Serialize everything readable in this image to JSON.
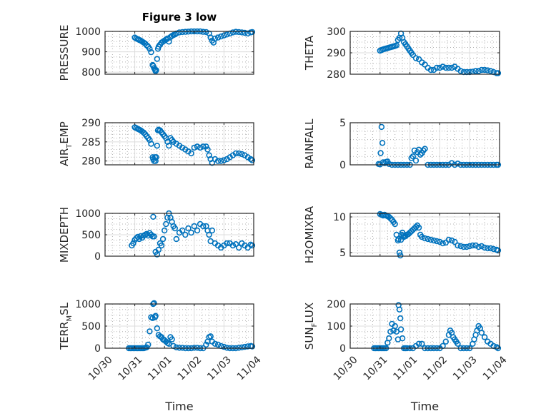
{
  "figure": {
    "title": "Figure 3 low",
    "marker_color": "#0072BD",
    "x_tick_labels": [
      "10/30",
      "10/31",
      "11/01",
      "11/02",
      "11/03",
      "11/04"
    ],
    "x_label": "Time"
  },
  "chart_data": [
    {
      "type": "scatter",
      "name": "PRESSURE",
      "ylabel": "PRESSURE",
      "ylabel_parts": [
        "PRESSURE"
      ],
      "x_unit": "days since 10/30",
      "xlim": [
        0,
        5
      ],
      "ylim": [
        790,
        1000
      ],
      "yticks": [
        800,
        900,
        1000
      ],
      "yticklabels": [
        "800",
        "900",
        "1000"
      ],
      "minor_yticks": [
        825,
        850,
        875,
        925,
        950,
        975
      ],
      "show_x_ticklabels": false,
      "x": [
        1.0,
        1.05,
        1.1,
        1.15,
        1.2,
        1.25,
        1.3,
        1.35,
        1.4,
        1.45,
        1.5,
        1.55,
        1.6,
        1.62,
        1.65,
        1.68,
        1.7,
        1.72,
        1.75,
        1.78,
        1.8,
        1.85,
        1.9,
        1.95,
        2.0,
        2.05,
        2.1,
        2.15,
        2.2,
        2.25,
        2.3,
        2.35,
        2.4,
        2.5,
        2.6,
        2.7,
        2.8,
        2.9,
        3.0,
        3.1,
        3.2,
        3.3,
        3.4,
        3.5,
        3.55,
        3.6,
        3.65,
        3.7,
        3.8,
        3.9,
        4.0,
        4.1,
        4.2,
        4.3,
        4.4,
        4.5,
        4.6,
        4.7,
        4.8,
        4.9,
        4.95
      ],
      "y": [
        970,
        965,
        962,
        958,
        955,
        950,
        945,
        940,
        932,
        925,
        915,
        898,
        835,
        830,
        820,
        812,
        805,
        810,
        865,
        915,
        925,
        935,
        945,
        950,
        955,
        960,
        965,
        950,
        972,
        978,
        982,
        985,
        990,
        995,
        997,
        998,
        999,
        1000,
        1000,
        1000,
        1000,
        998,
        997,
        990,
        970,
        955,
        945,
        965,
        970,
        975,
        980,
        985,
        990,
        995,
        998,
        997,
        995,
        993,
        990,
        995,
        997
      ]
    },
    {
      "type": "scatter",
      "name": "THETA",
      "ylabel": "THETA",
      "ylabel_parts": [
        "THETA"
      ],
      "x_unit": "days since 10/30",
      "xlim": [
        0,
        5
      ],
      "ylim": [
        280,
        300
      ],
      "yticks": [
        280,
        290,
        300
      ],
      "yticklabels": [
        "280",
        "290",
        "300"
      ],
      "minor_yticks": [
        282.5,
        285,
        287.5,
        292.5,
        295,
        297.5
      ],
      "show_x_ticklabels": false,
      "x": [
        1.0,
        1.05,
        1.1,
        1.15,
        1.2,
        1.25,
        1.3,
        1.35,
        1.4,
        1.45,
        1.5,
        1.55,
        1.6,
        1.65,
        1.7,
        1.75,
        1.8,
        1.85,
        1.9,
        1.95,
        2.0,
        2.05,
        2.1,
        2.2,
        2.3,
        2.4,
        2.5,
        2.6,
        2.7,
        2.8,
        2.9,
        3.0,
        3.1,
        3.2,
        3.3,
        3.4,
        3.5,
        3.6,
        3.7,
        3.8,
        3.9,
        4.0,
        4.1,
        4.2,
        4.3,
        4.4,
        4.5,
        4.6,
        4.7,
        4.8,
        4.9,
        4.95
      ],
      "y": [
        291,
        291.3,
        291.6,
        291.8,
        292,
        292.2,
        292.4,
        292.6,
        292.8,
        293,
        293.2,
        293.5,
        296,
        297,
        299,
        297,
        295,
        294,
        293,
        292,
        291,
        290,
        289,
        287.5,
        287,
        285.5,
        284.5,
        283,
        282,
        282,
        283,
        283,
        283.5,
        283,
        283,
        283,
        283.5,
        282.5,
        281.5,
        281,
        281,
        281,
        281.2,
        281.5,
        281.5,
        282,
        282,
        281.8,
        281.5,
        281,
        280.5,
        280.5
      ]
    },
    {
      "type": "scatter",
      "name": "AIR_TEMP",
      "ylabel": "AIR_TEMP",
      "ylabel_parts": [
        "AIR",
        "T",
        "EMP"
      ],
      "x_unit": "days since 10/30",
      "xlim": [
        0,
        5
      ],
      "ylim": [
        279,
        290
      ],
      "yticks": [
        280,
        285,
        290
      ],
      "yticklabels": [
        "280",
        "285",
        "290"
      ],
      "minor_yticks": [
        281,
        282,
        283,
        284,
        286,
        287,
        288,
        289
      ],
      "show_x_ticklabels": false,
      "x": [
        1.0,
        1.05,
        1.1,
        1.15,
        1.2,
        1.25,
        1.3,
        1.35,
        1.4,
        1.45,
        1.5,
        1.55,
        1.6,
        1.62,
        1.65,
        1.68,
        1.7,
        1.72,
        1.75,
        1.78,
        1.8,
        1.85,
        1.9,
        1.95,
        2.0,
        2.05,
        2.1,
        2.15,
        2.2,
        2.25,
        2.3,
        2.4,
        2.5,
        2.6,
        2.7,
        2.8,
        2.9,
        3.0,
        3.1,
        3.2,
        3.3,
        3.4,
        3.45,
        3.5,
        3.55,
        3.6,
        3.7,
        3.8,
        3.9,
        4.0,
        4.1,
        4.2,
        4.3,
        4.4,
        4.5,
        4.6,
        4.7,
        4.8,
        4.9,
        4.95
      ],
      "y": [
        288.8,
        288.6,
        288.4,
        288.2,
        288,
        287.7,
        287.4,
        287,
        286.5,
        286,
        285.5,
        284.5,
        281,
        280.5,
        280,
        281,
        280,
        281,
        284,
        288,
        288.2,
        288,
        287.5,
        287,
        286.5,
        286,
        285,
        284,
        286,
        285.5,
        285,
        284.5,
        284,
        283.5,
        283,
        282.5,
        282,
        283.5,
        283.8,
        283.5,
        283.8,
        283.8,
        283,
        281.5,
        280.5,
        279.5,
        280.5,
        280,
        280,
        280.2,
        280.5,
        281,
        281.5,
        282,
        282,
        281.8,
        281.5,
        281,
        280.5,
        280.2
      ]
    },
    {
      "type": "scatter",
      "name": "RAINFALL",
      "ylabel": "RAINFALL",
      "ylabel_parts": [
        "RAINFALL"
      ],
      "x_unit": "days since 10/30",
      "xlim": [
        0,
        5
      ],
      "ylim": [
        0,
        5
      ],
      "yticks": [
        0,
        5
      ],
      "yticklabels": [
        "0",
        "5"
      ],
      "minor_yticks": [
        1,
        2,
        3,
        4
      ],
      "show_x_ticklabels": false,
      "x": [
        0.95,
        1.0,
        1.02,
        1.05,
        1.08,
        1.1,
        1.15,
        1.2,
        1.25,
        1.3,
        1.4,
        1.5,
        1.6,
        1.7,
        1.8,
        1.9,
        2.0,
        2.05,
        2.1,
        2.15,
        2.2,
        2.25,
        2.3,
        2.35,
        2.4,
        2.45,
        2.5,
        2.6,
        2.7,
        2.8,
        2.9,
        3.0,
        3.1,
        3.2,
        3.3,
        3.4,
        3.5,
        3.6,
        3.7,
        3.8,
        3.9,
        4.0,
        4.1,
        4.2,
        4.3,
        4.4,
        4.5,
        4.6,
        4.7,
        4.8,
        4.9,
        4.95
      ],
      "y": [
        0.1,
        0.05,
        1.4,
        4.5,
        2.6,
        0.3,
        0.2,
        0.35,
        0.4,
        0.1,
        0,
        0,
        0,
        0,
        0,
        0,
        0,
        0.8,
        1.0,
        1.7,
        0.5,
        1.5,
        1.8,
        1.2,
        1.4,
        1.7,
        1.9,
        0,
        0,
        0,
        0,
        0,
        0,
        0,
        0,
        0.2,
        0,
        0.15,
        0,
        0,
        0,
        0,
        0,
        0,
        0,
        0,
        0,
        0,
        0,
        0,
        0,
        0
      ]
    },
    {
      "type": "scatter",
      "name": "MIXDEPTH",
      "ylabel": "MIXDEPTH",
      "ylabel_parts": [
        "MIXDEPTH"
      ],
      "x_unit": "days since 10/30",
      "xlim": [
        0,
        5
      ],
      "ylim": [
        0,
        1000
      ],
      "yticks": [
        0,
        500,
        1000
      ],
      "yticklabels": [
        "0",
        "500",
        "1000"
      ],
      "minor_yticks": [
        125,
        250,
        375,
        625,
        750,
        875
      ],
      "show_x_ticklabels": false,
      "x": [
        0.9,
        0.95,
        1.0,
        1.05,
        1.1,
        1.15,
        1.2,
        1.25,
        1.3,
        1.35,
        1.4,
        1.45,
        1.5,
        1.55,
        1.6,
        1.62,
        1.65,
        1.7,
        1.75,
        1.8,
        1.85,
        1.9,
        1.95,
        2.0,
        2.05,
        2.1,
        2.15,
        2.2,
        2.25,
        2.3,
        2.35,
        2.4,
        2.5,
        2.6,
        2.7,
        2.8,
        2.9,
        3.0,
        3.1,
        3.2,
        3.3,
        3.4,
        3.45,
        3.5,
        3.55,
        3.6,
        3.7,
        3.8,
        3.9,
        4.0,
        4.1,
        4.2,
        4.3,
        4.4,
        4.5,
        4.6,
        4.7,
        4.8,
        4.9,
        4.95
      ],
      "y": [
        250,
        300,
        380,
        420,
        450,
        400,
        470,
        430,
        480,
        500,
        520,
        480,
        540,
        500,
        460,
        920,
        460,
        100,
        40,
        150,
        300,
        250,
        400,
        600,
        750,
        900,
        1000,
        900,
        800,
        700,
        650,
        400,
        550,
        600,
        500,
        650,
        550,
        700,
        600,
        750,
        700,
        700,
        600,
        500,
        350,
        600,
        300,
        250,
        200,
        250,
        300,
        300,
        250,
        280,
        200,
        300,
        250,
        200,
        270,
        250
      ]
    },
    {
      "type": "scatter",
      "name": "H2OMIXRA",
      "ylabel": "H2OMIXRA",
      "ylabel_parts": [
        "H2OMIXRA"
      ],
      "x_unit": "days since 10/30",
      "xlim": [
        0,
        5
      ],
      "ylim": [
        4.5,
        10.5
      ],
      "yticks": [
        5,
        10
      ],
      "yticklabels": [
        "5",
        "10"
      ],
      "minor_yticks": [
        6,
        7,
        8,
        9
      ],
      "show_x_ticklabels": false,
      "x": [
        1.0,
        1.05,
        1.1,
        1.15,
        1.2,
        1.25,
        1.3,
        1.35,
        1.4,
        1.45,
        1.5,
        1.55,
        1.6,
        1.62,
        1.65,
        1.68,
        1.7,
        1.72,
        1.75,
        1.78,
        1.8,
        1.85,
        1.9,
        1.95,
        2.0,
        2.05,
        2.1,
        2.15,
        2.2,
        2.25,
        2.3,
        2.35,
        2.4,
        2.5,
        2.6,
        2.7,
        2.8,
        2.9,
        3.0,
        3.1,
        3.2,
        3.3,
        3.4,
        3.5,
        3.6,
        3.7,
        3.8,
        3.9,
        4.0,
        4.1,
        4.2,
        4.3,
        4.4,
        4.5,
        4.6,
        4.7,
        4.8,
        4.9,
        4.95
      ],
      "y": [
        10.4,
        10.3,
        10.2,
        10.3,
        10.2,
        10.1,
        10,
        9.8,
        9.6,
        9.3,
        9.0,
        7.5,
        6.7,
        6.9,
        5.0,
        4.6,
        6.8,
        7.5,
        7.8,
        7.4,
        7.2,
        7.3,
        7.5,
        7.6,
        7.8,
        8.0,
        8.2,
        8.4,
        8.6,
        8.8,
        8.5,
        7.5,
        7.2,
        7.0,
        6.9,
        6.8,
        6.7,
        6.6,
        6.5,
        6.3,
        6.4,
        6.8,
        6.7,
        6.5,
        6.0,
        5.9,
        5.8,
        5.8,
        5.9,
        6.0,
        6.0,
        5.8,
        5.9,
        5.7,
        5.6,
        5.6,
        5.5,
        5.4,
        5.3
      ]
    },
    {
      "type": "scatter",
      "name": "TERR_MSL",
      "ylabel": "TERR_MSL",
      "ylabel_parts": [
        "TERR",
        "M",
        "SL"
      ],
      "x_unit": "days since 10/30",
      "xlim": [
        0,
        5
      ],
      "ylim": [
        0,
        1000
      ],
      "yticks": [
        0,
        500,
        1000
      ],
      "yticklabels": [
        "0",
        "500",
        "1000"
      ],
      "minor_yticks": [
        125,
        250,
        375,
        625,
        750,
        875
      ],
      "show_x_ticklabels": true,
      "x": [
        0.8,
        0.85,
        0.9,
        0.95,
        1.0,
        1.05,
        1.1,
        1.15,
        1.2,
        1.25,
        1.3,
        1.35,
        1.4,
        1.45,
        1.5,
        1.55,
        1.6,
        1.62,
        1.65,
        1.68,
        1.7,
        1.75,
        1.8,
        1.85,
        1.9,
        1.95,
        2.0,
        2.05,
        2.1,
        2.15,
        2.2,
        2.25,
        2.3,
        2.4,
        2.5,
        2.6,
        2.7,
        2.8,
        2.9,
        3.0,
        3.1,
        3.2,
        3.3,
        3.4,
        3.45,
        3.5,
        3.55,
        3.6,
        3.7,
        3.8,
        3.9,
        4.0,
        4.1,
        4.2,
        4.3,
        4.4,
        4.5,
        4.6,
        4.7,
        4.8,
        4.9,
        4.95
      ],
      "y": [
        0,
        0,
        0,
        0,
        0,
        0,
        0,
        0,
        0,
        0,
        0,
        10,
        20,
        80,
        380,
        700,
        680,
        1000,
        1020,
        700,
        730,
        450,
        300,
        270,
        250,
        200,
        180,
        150,
        120,
        100,
        250,
        200,
        50,
        20,
        10,
        10,
        0,
        0,
        0,
        10,
        10,
        0,
        0,
        80,
        150,
        250,
        270,
        150,
        100,
        80,
        50,
        30,
        10,
        0,
        0,
        0,
        10,
        20,
        30,
        40,
        50,
        40
      ]
    },
    {
      "type": "scatter",
      "name": "SUN_FLUX",
      "ylabel": "SUN_FLUX",
      "ylabel_parts": [
        "SUN",
        "F",
        "LUX"
      ],
      "x_unit": "days since 10/30",
      "xlim": [
        0,
        5
      ],
      "ylim": [
        0,
        200
      ],
      "yticks": [
        0,
        100,
        200
      ],
      "yticklabels": [
        "0",
        "100",
        "200"
      ],
      "minor_yticks": [
        25,
        50,
        75,
        125,
        150,
        175
      ],
      "show_x_ticklabels": true,
      "x": [
        0.8,
        0.85,
        0.9,
        0.95,
        1.0,
        1.05,
        1.1,
        1.15,
        1.2,
        1.25,
        1.3,
        1.35,
        1.4,
        1.45,
        1.5,
        1.55,
        1.6,
        1.62,
        1.65,
        1.68,
        1.7,
        1.75,
        1.8,
        1.85,
        1.9,
        2.0,
        2.1,
        2.2,
        2.3,
        2.4,
        2.5,
        2.6,
        2.7,
        2.8,
        2.9,
        3.0,
        3.1,
        3.2,
        3.3,
        3.35,
        3.4,
        3.45,
        3.5,
        3.55,
        3.6,
        3.7,
        3.8,
        3.9,
        4.0,
        4.1,
        4.15,
        4.2,
        4.25,
        4.3,
        4.35,
        4.4,
        4.5,
        4.6,
        4.7,
        4.8,
        4.9,
        4.95
      ],
      "y": [
        0,
        0,
        0,
        0,
        0,
        0,
        0,
        0,
        0,
        25,
        45,
        75,
        110,
        80,
        100,
        75,
        40,
        195,
        175,
        135,
        85,
        45,
        0,
        0,
        0,
        0,
        0,
        10,
        20,
        20,
        0,
        0,
        0,
        0,
        0,
        0,
        10,
        30,
        60,
        80,
        70,
        50,
        40,
        30,
        20,
        0,
        0,
        0,
        0,
        20,
        40,
        60,
        80,
        100,
        90,
        70,
        50,
        30,
        20,
        10,
        5,
        0
      ]
    }
  ]
}
